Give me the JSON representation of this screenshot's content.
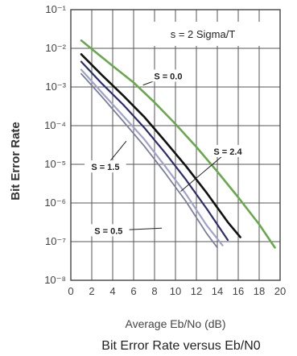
{
  "chart_data": {
    "type": "line",
    "title": "Bit Error Rate versus Eb/N0",
    "xlabel": "Average Eb/No (dB)",
    "ylabel": "Bit Error Rate",
    "annotation": "s = 2 Sigma/T",
    "xlim": [
      0,
      20
    ],
    "ylim_exponent": [
      -8,
      -1
    ],
    "yscale": "log",
    "grid": true,
    "x_ticks": [
      "0",
      "2",
      "4",
      "6",
      "8",
      "10",
      "12",
      "14",
      "16",
      "18",
      "20"
    ],
    "y_ticks": [
      {
        "exp": -1,
        "label": "10⁻¹"
      },
      {
        "exp": -2,
        "label": "10⁻²"
      },
      {
        "exp": -3,
        "label": "10⁻³"
      },
      {
        "exp": -4,
        "label": "10⁻⁴"
      },
      {
        "exp": -5,
        "label": "10⁻⁵"
      },
      {
        "exp": -6,
        "label": "10⁻⁶"
      },
      {
        "exp": -7,
        "label": "10⁻⁷"
      },
      {
        "exp": -8,
        "label": "10⁻⁸"
      }
    ],
    "series": [
      {
        "name": "S = 0.0",
        "color": "#6aa84f",
        "width": 2.6,
        "x": [
          1,
          4,
          6,
          8,
          10,
          12,
          14,
          16,
          18,
          19.5
        ],
        "y": [
          0.016,
          0.0035,
          0.0013,
          0.0004,
          0.00011,
          2.8e-05,
          6.5e-06,
          1.4e-06,
          2.8e-07,
          7e-08
        ],
        "label_at": [
          9.3,
          -2.8
        ],
        "label_point": [
          6.9,
          -2.95
        ]
      },
      {
        "name": "",
        "color": "#111111",
        "width": 2.6,
        "x": [
          1,
          3,
          5,
          7,
          9,
          11,
          13,
          15,
          16.2
        ],
        "y": [
          0.007,
          0.002,
          0.0006,
          0.00017,
          4e-05,
          9e-06,
          1.8e-06,
          3.2e-07,
          1.3e-07
        ],
        "label_at": null,
        "label_point": null
      },
      {
        "name": "S = 1.5",
        "color": "#2e2e6e",
        "width": 2.2,
        "x": [
          1,
          3,
          5,
          7,
          9,
          11,
          13,
          15
        ],
        "y": [
          0.0045,
          0.0012,
          0.00035,
          9e-05,
          2e-05,
          4e-06,
          7e-07,
          1.1e-07
        ],
        "label_at": [
          3.3,
          -5.15
        ],
        "label_point": [
          5.3,
          -4.4
        ]
      },
      {
        "name": "S = 2.4",
        "color": "#9fa3c8",
        "width": 2.2,
        "x": [
          1,
          3,
          5,
          7,
          9,
          11,
          13,
          14.5
        ],
        "y": [
          0.0028,
          0.0007,
          0.00018,
          4.5e-05,
          9e-06,
          1.7e-06,
          2.6e-07,
          8e-08
        ],
        "label_at": [
          15.0,
          -4.75
        ],
        "label_point": [
          10.5,
          -5.7
        ]
      },
      {
        "name": "S = 0.5",
        "color": "#7a7f9a",
        "width": 1.8,
        "x": [
          1,
          3,
          5,
          7,
          9,
          11,
          13,
          14
        ],
        "y": [
          0.0022,
          0.00055,
          0.00013,
          3e-05,
          6e-06,
          1.1e-06,
          1.6e-07,
          7e-08
        ],
        "label_at": [
          3.6,
          -6.8
        ],
        "label_point": [
          8.7,
          -6.65
        ]
      }
    ]
  }
}
